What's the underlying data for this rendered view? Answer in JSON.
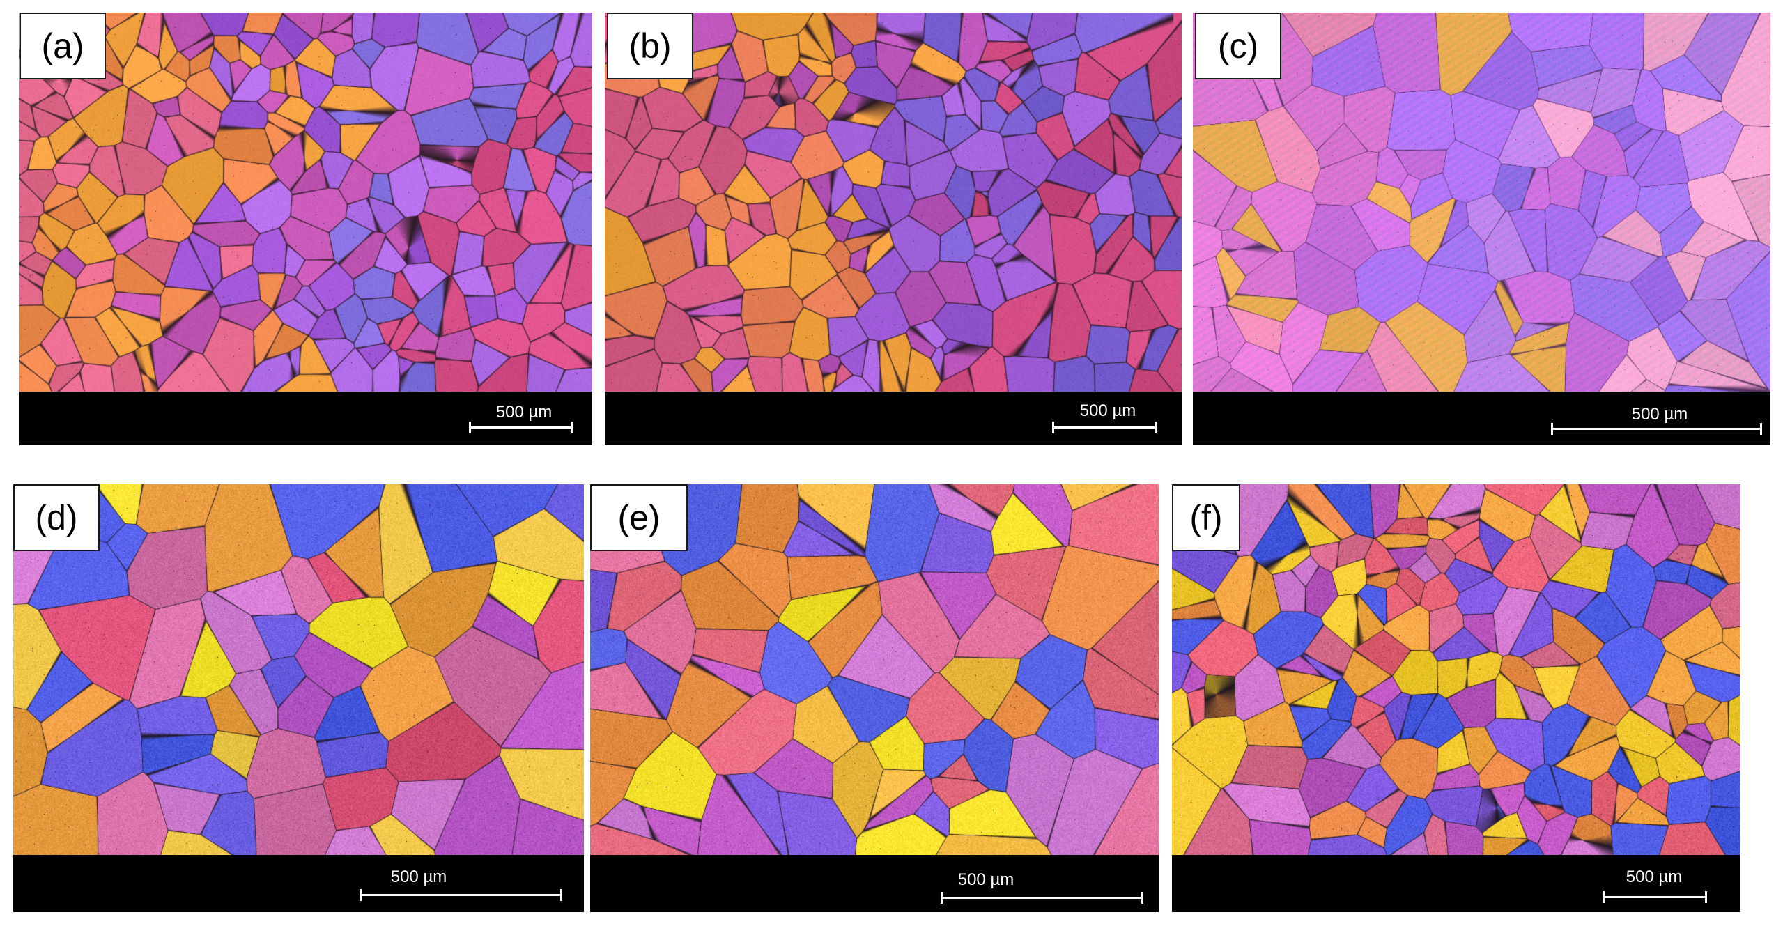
{
  "panels": [
    {
      "label": "(a)",
      "scale_bar_text": "500 µm",
      "palette": [
        "#e56a8c",
        "#ef8a4e",
        "#f2a13f",
        "#c658b7",
        "#9e55d6",
        "#b06ce8",
        "#8470e0",
        "#d94f88"
      ],
      "grain_density": 230,
      "boundary_color": "#2b1a22",
      "texture": "dendritic"
    },
    {
      "label": "(b)",
      "scale_bar_text": "500 µm",
      "palette": [
        "#d85d88",
        "#e57d55",
        "#f2a13f",
        "#b853b8",
        "#9455d0",
        "#a866e0",
        "#7d62d6",
        "#cf4a7f"
      ],
      "grain_density": 210,
      "boundary_color": "#2a1923",
      "texture": "dendritic"
    },
    {
      "label": "(c)",
      "scale_bar_text": "500 µm",
      "palette": [
        "#e27bd8",
        "#f08fb8",
        "#f0b05a",
        "#cf72e4",
        "#a66ff0",
        "#bd84ec",
        "#9a72ee",
        "#f3a5d0"
      ],
      "grain_density": 110,
      "boundary_color": "#4b2a5a",
      "texture": "lamellar"
    },
    {
      "label": "(d)",
      "scale_bar_text": "500 µm",
      "palette": [
        "#f5e22d",
        "#e89b3f",
        "#d56fa7",
        "#b856c8",
        "#6b5ee3",
        "#4e5de6",
        "#cf7ad0",
        "#f2c94b",
        "#d84f74"
      ],
      "grain_density": 62,
      "boundary_color": "#1f1620",
      "texture": "recrystallized"
    },
    {
      "label": "(e)",
      "scale_bar_text": "500 µm",
      "palette": [
        "#f4e029",
        "#ea8e46",
        "#db6e98",
        "#c05ac6",
        "#7c5be0",
        "#5b66e8",
        "#ce7ad5",
        "#f1ba42",
        "#e46a7c"
      ],
      "grain_density": 72,
      "boundary_color": "#1f1620",
      "texture": "recrystallized"
    },
    {
      "label": "(f)",
      "scale_bar_text": "500 µm",
      "palette": [
        "#f3c92f",
        "#e98a48",
        "#d86a8c",
        "#bb55c0",
        "#7b57de",
        "#4b5be4",
        "#cf78cf",
        "#f0a33f",
        "#e46073"
      ],
      "grain_density": 175,
      "boundary_color": "#1f1620",
      "texture": "recrystallized"
    }
  ]
}
